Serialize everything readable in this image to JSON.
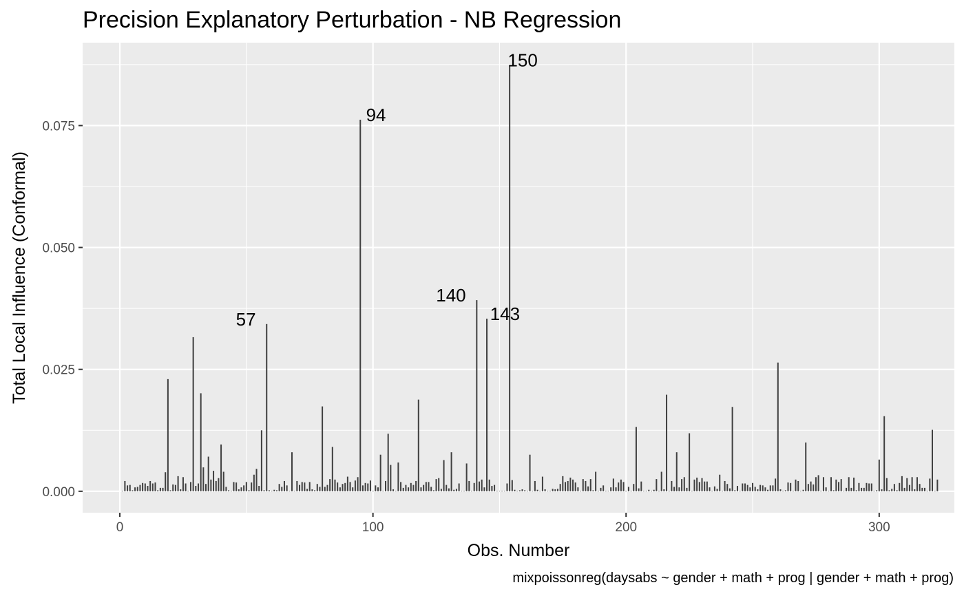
{
  "chart_data": {
    "type": "bar",
    "title": "Precision Explanatory Perturbation - NB Regression",
    "xlabel": "Obs. Number",
    "ylabel": "Total Local Influence (Conformal)",
    "caption": "mixpoissonreg(daysabs ~ gender + math + prog | gender + math + prog)",
    "xlim": [
      -14.7,
      329.7
    ],
    "ylim": [
      -0.0044,
      0.092
    ],
    "x_ticks": [
      0,
      100,
      200,
      300
    ],
    "x_tick_labels": [
      "0",
      "100",
      "200",
      "300"
    ],
    "y_ticks": [
      0.0,
      0.025,
      0.05,
      0.075
    ],
    "y_tick_labels": [
      "0.000",
      "0.025",
      "0.050",
      "0.075"
    ],
    "grid": true,
    "bar_color": "#404040",
    "panel_background": "#ebebeb",
    "values": [
      0.0001,
      0.0021,
      0.0012,
      0.0013,
      0.0002,
      0.0008,
      0.0009,
      0.0013,
      0.0017,
      0.0016,
      0.0011,
      0.0021,
      0.0016,
      0.0018,
      0.0002,
      0.0007,
      0.0007,
      0.0039,
      0.023,
      0.0002,
      0.0014,
      0.0013,
      0.0031,
      0.0004,
      0.0029,
      0.0016,
      0.0001,
      0.0019,
      0.0316,
      0.0011,
      0.0016,
      0.0201,
      0.0049,
      0.0015,
      0.0071,
      0.0024,
      0.0042,
      0.0021,
      0.0027,
      0.0096,
      0.004,
      0.0009,
      0.0002,
      0.0001,
      0.0019,
      0.0018,
      0.0004,
      0.0008,
      0.0012,
      0.0019,
      0.0002,
      0.0018,
      0.0034,
      0.0046,
      0.0011,
      0.0125,
      0.0002,
      0.0343,
      0.0002,
      0.0001,
      0.0003,
      0.0002,
      0.0015,
      0.0009,
      0.0021,
      0.0012,
      0.0001,
      0.008,
      0.0001,
      0.0021,
      0.0013,
      0.0019,
      0.0018,
      0.0005,
      0.0019,
      0.0004,
      0.0002,
      0.0015,
      0.0009,
      0.0174,
      0.0009,
      0.0013,
      0.0025,
      0.0091,
      0.0024,
      0.0018,
      0.0008,
      0.0015,
      0.0017,
      0.003,
      0.0019,
      0.0008,
      0.0022,
      0.0029,
      0.0762,
      0.0012,
      0.0017,
      0.0016,
      0.0022,
      0.0001,
      0.0012,
      0.0008,
      0.0075,
      0.0001,
      0.0021,
      0.0118,
      0.0054,
      0.0004,
      0.0001,
      0.0059,
      0.0019,
      0.0007,
      0.0013,
      0.0008,
      0.0017,
      0.0013,
      0.0021,
      0.0188,
      0.0008,
      0.0013,
      0.0019,
      0.0019,
      0.0009,
      0.0002,
      0.0025,
      0.0027,
      0.0005,
      0.0064,
      0.0013,
      0.0006,
      0.008,
      0.0003,
      0.0005,
      0.0016,
      0.0001,
      0.0001,
      0.0057,
      0.0021,
      0.0001,
      0.0017,
      0.0392,
      0.002,
      0.0024,
      0.0008,
      0.0354,
      0.0024,
      0.0011,
      0.0013,
      0.0001,
      0.0001,
      0.0001,
      0.0001,
      0.0016,
      0.0874,
      0.0023,
      0.0003,
      0.0001,
      0.0002,
      0.0004,
      0.0002,
      0.0001,
      0.0075,
      0.0001,
      0.0021,
      0.0003,
      0.0001,
      0.003,
      0.0004,
      0.0001,
      0.0001,
      0.0005,
      0.0004,
      0.0005,
      0.0015,
      0.0031,
      0.0019,
      0.0021,
      0.0028,
      0.0024,
      0.0018,
      0.0008,
      0.0001,
      0.0025,
      0.0021,
      0.001,
      0.0025,
      0.0002,
      0.004,
      0.0001,
      0.0007,
      0.0012,
      0.0001,
      0.0001,
      0.0008,
      0.0026,
      0.0008,
      0.0018,
      0.0024,
      0.0019,
      0.0001,
      0.0009,
      0.0001,
      0.0015,
      0.0132,
      0.0006,
      0.002,
      0.0001,
      0.0001,
      0.0003,
      0.0001,
      0.0003,
      0.0025,
      0.0001,
      0.004,
      0.0004,
      0.0198,
      0.0001,
      0.0021,
      0.0009,
      0.008,
      0.0008,
      0.0025,
      0.0029,
      0.0007,
      0.0119,
      0.0001,
      0.0024,
      0.0028,
      0.0019,
      0.0027,
      0.002,
      0.002,
      0.0008,
      0.0001,
      0.001,
      0.0005,
      0.0034,
      0.0001,
      0.0021,
      0.0015,
      0.0006,
      0.0173,
      0.0002,
      0.0011,
      0.0001,
      0.0016,
      0.0016,
      0.0013,
      0.0008,
      0.0017,
      0.0009,
      0.0004,
      0.0013,
      0.0012,
      0.0008,
      0.0003,
      0.0012,
      0.0012,
      0.0026,
      0.0264,
      0.0004,
      0.0001,
      0.0002,
      0.0018,
      0.0017,
      0.0001,
      0.0024,
      0.0021,
      0.0001,
      0.0003,
      0.01,
      0.0015,
      0.002,
      0.0014,
      0.0029,
      0.0033,
      0.0001,
      0.0029,
      0.0008,
      0.0001,
      0.0029,
      0.0002,
      0.0024,
      0.0019,
      0.0025,
      0.0001,
      0.0007,
      0.0029,
      0.0007,
      0.0028,
      0.0002,
      0.0017,
      0.0007,
      0.0007,
      0.0017,
      0.0016,
      0.0016,
      0.0001,
      0.0002,
      0.0065,
      0.0004,
      0.0154,
      0.0027,
      0.0002,
      0.0005,
      0.0015,
      0.0002,
      0.0017,
      0.0031,
      0.0007,
      0.0027,
      0.0013,
      0.0029,
      0.0004,
      0.0029,
      0.0015,
      0.0007,
      0.0007,
      0.0001,
      0.0026,
      0.0126,
      0.0001,
      0.0024
    ],
    "annotations": [
      {
        "text": "57",
        "x": 57,
        "y": 0.0343,
        "anchor": "end"
      },
      {
        "text": "94",
        "x": 94,
        "y": 0.0762,
        "anchor": "start"
      },
      {
        "text": "140",
        "x": 140,
        "y": 0.0392,
        "anchor": "end"
      },
      {
        "text": "143",
        "x": 143,
        "y": 0.0354,
        "anchor": "start"
      },
      {
        "text": "150",
        "x": 150,
        "y": 0.0874,
        "anchor": "start"
      }
    ]
  }
}
